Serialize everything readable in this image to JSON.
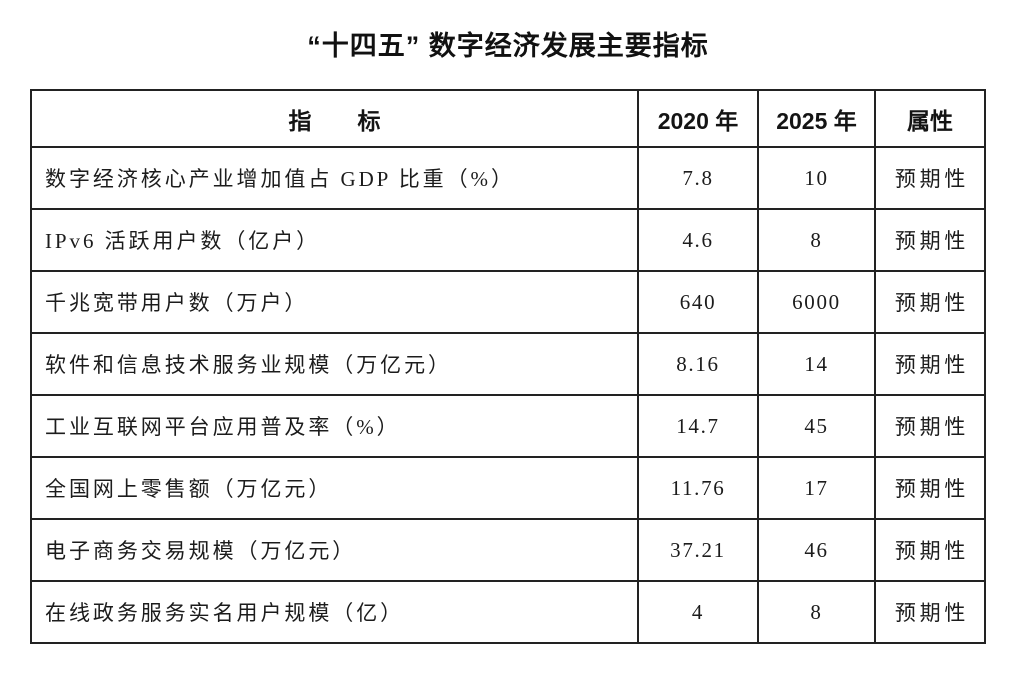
{
  "page": {
    "title": "“十四五” 数字经济发展主要指标"
  },
  "table": {
    "headers": {
      "indicator": "指　　标",
      "y2020": "2020 年",
      "y2025": "2025 年",
      "attribute": "属性"
    },
    "rows": [
      {
        "indicator": "数字经济核心产业增加值占 GDP 比重（%）",
        "y2020": "7.8",
        "y2025": "10",
        "attribute": "预期性"
      },
      {
        "indicator": "IPv6 活跃用户数（亿户）",
        "y2020": "4.6",
        "y2025": "8",
        "attribute": "预期性"
      },
      {
        "indicator": "千兆宽带用户数（万户）",
        "y2020": "640",
        "y2025": "6000",
        "attribute": "预期性"
      },
      {
        "indicator": "软件和信息技术服务业规模（万亿元）",
        "y2020": "8.16",
        "y2025": "14",
        "attribute": "预期性"
      },
      {
        "indicator": "工业互联网平台应用普及率（%）",
        "y2020": "14.7",
        "y2025": "45",
        "attribute": "预期性"
      },
      {
        "indicator": "全国网上零售额（万亿元）",
        "y2020": "11.76",
        "y2025": "17",
        "attribute": "预期性"
      },
      {
        "indicator": "电子商务交易规模（万亿元）",
        "y2020": "37.21",
        "y2025": "46",
        "attribute": "预期性"
      },
      {
        "indicator": "在线政务服务实名用户规模（亿）",
        "y2020": "4",
        "y2025": "8",
        "attribute": "预期性"
      }
    ]
  },
  "chart_data": {
    "type": "table",
    "title": "“十四五” 数字经济发展主要指标",
    "columns": [
      "指标",
      "2020 年",
      "2025 年",
      "属性"
    ],
    "rows": [
      [
        "数字经济核心产业增加值占 GDP 比重（%）",
        7.8,
        10,
        "预期性"
      ],
      [
        "IPv6 活跃用户数（亿户）",
        4.6,
        8,
        "预期性"
      ],
      [
        "千兆宽带用户数（万户）",
        640,
        6000,
        "预期性"
      ],
      [
        "软件和信息技术服务业规模（万亿元）",
        8.16,
        14,
        "预期性"
      ],
      [
        "工业互联网平台应用普及率（%）",
        14.7,
        45,
        "预期性"
      ],
      [
        "全国网上零售额（万亿元）",
        11.76,
        17,
        "预期性"
      ],
      [
        "电子商务交易规模（万亿元）",
        37.21,
        46,
        "预期性"
      ],
      [
        "在线政务服务实名用户规模（亿）",
        4,
        8,
        "预期性"
      ]
    ]
  }
}
